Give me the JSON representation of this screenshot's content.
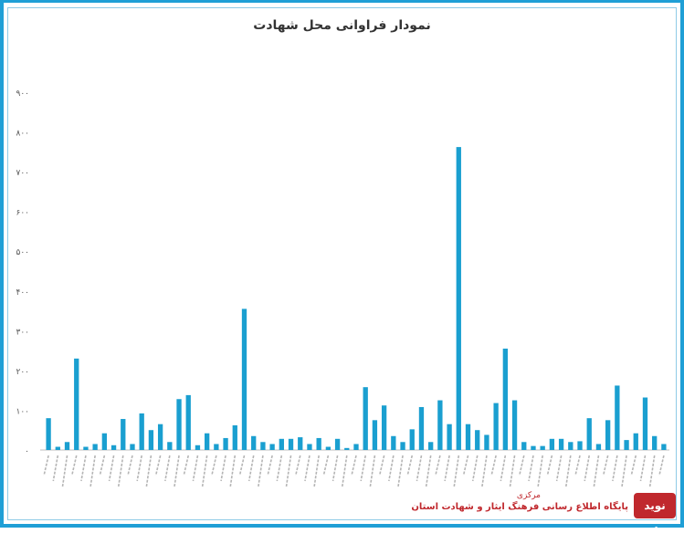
{
  "chart_data": {
    "type": "bar",
    "title": "نمودار فراوانی محل شهادت",
    "ylim": [
      0,
      900
    ],
    "yticks": [
      0,
      100,
      200,
      300,
      400,
      500,
      600,
      700,
      800,
      900
    ],
    "ytick_labels": [
      "۰",
      "۱۰۰",
      "۲۰۰",
      "۳۰۰",
      "۴۰۰",
      "۵۰۰",
      "۶۰۰",
      "۷۰۰",
      "۸۰۰",
      "۹۰۰"
    ],
    "bar_color": "#1a9fd0",
    "grid": false,
    "values": [
      80,
      8,
      20,
      230,
      8,
      15,
      42,
      12,
      78,
      15,
      92,
      50,
      65,
      20,
      128,
      138,
      12,
      42,
      15,
      30,
      62,
      355,
      35,
      20,
      15,
      28,
      28,
      32,
      15,
      30,
      8,
      28,
      5,
      15,
      158,
      75,
      112,
      35,
      20,
      52,
      108,
      20,
      125,
      65,
      762,
      65,
      50,
      38,
      118,
      255,
      125,
      20,
      10,
      10,
      28,
      28,
      20,
      22,
      80,
      15,
      75,
      162,
      25,
      42,
      132,
      35,
      15
    ]
  },
  "logo": {
    "line1": "پایگاه اطلاع رسانی فرهنگ ایثار و شهادت استان",
    "line2": "مرکزی",
    "mark": "نوید شاهد"
  }
}
